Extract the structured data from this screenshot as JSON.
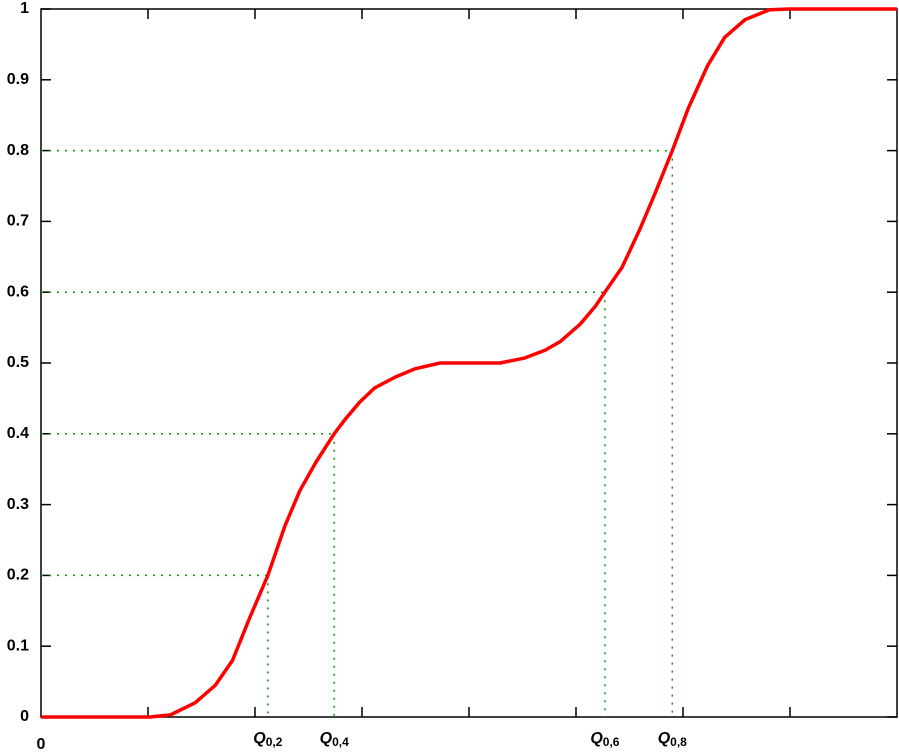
{
  "chart_data": {
    "type": "line",
    "x": [
      0,
      1.02,
      1.21,
      1.44,
      1.63,
      1.79,
      1.95,
      2.12,
      2.28,
      2.42,
      2.57,
      2.74,
      2.84,
      2.98,
      3.12,
      3.31,
      3.5,
      3.73,
      4.29,
      4.52,
      4.71,
      4.85,
      5.04,
      5.18,
      5.27,
      5.43,
      5.6,
      5.74,
      5.9,
      6.05,
      6.23,
      6.39,
      6.58,
      6.81,
      7.0,
      8.0
    ],
    "series": [
      {
        "color": "#ff0000",
        "values": [
          0,
          0,
          0.003,
          0.02,
          0.045,
          0.08,
          0.14,
          0.2,
          0.27,
          0.32,
          0.36,
          0.4,
          0.42,
          0.445,
          0.465,
          0.48,
          0.492,
          0.5,
          0.5,
          0.507,
          0.518,
          0.53,
          0.555,
          0.58,
          0.6,
          0.635,
          0.69,
          0.74,
          0.8,
          0.86,
          0.92,
          0.96,
          0.985,
          0.999,
          1,
          1
        ]
      }
    ],
    "xlim": [
      0,
      8
    ],
    "xticks": [
      0
    ],
    "xminor_ticks": [
      1,
      2,
      3,
      4,
      5,
      6,
      7
    ],
    "ylim": [
      0,
      1
    ],
    "yticks": [
      0,
      0.1,
      0.2,
      0.3,
      0.4,
      0.5,
      0.6,
      0.7,
      0.8,
      0.9,
      1
    ],
    "quantile_color": "#009900",
    "quantiles": [
      {
        "label": "Q",
        "subscript": "0,2",
        "x": 2.12,
        "p": 0.2
      },
      {
        "label": "Q",
        "subscript": "0,4",
        "x": 2.74,
        "p": 0.4
      },
      {
        "label": "Q",
        "subscript": "0,6",
        "x": 5.27,
        "p": 0.6
      },
      {
        "label": "Q",
        "subscript": "0,8",
        "x": 5.9,
        "p": 0.8
      }
    ]
  }
}
